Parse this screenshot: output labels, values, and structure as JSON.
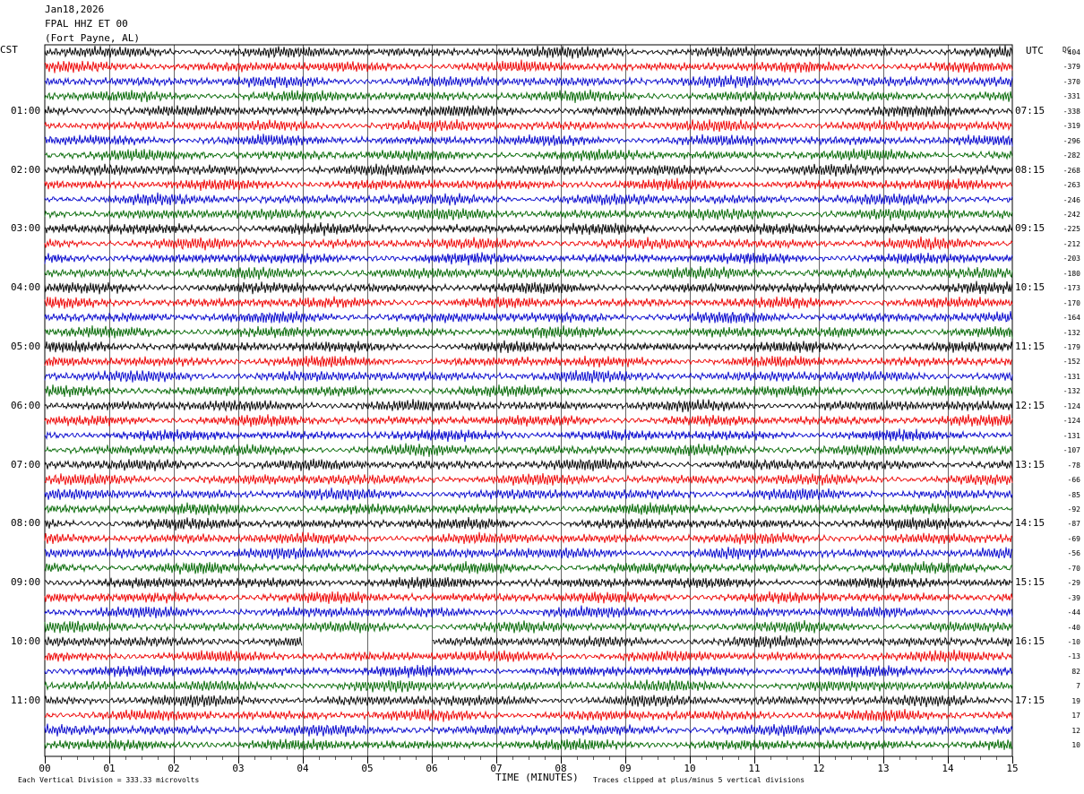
{
  "header": {
    "date": "Jan18,2026",
    "station": "FPAL HHZ ET 00",
    "location": "(Fort Payne, AL)"
  },
  "labels": {
    "left_tz": "CST",
    "right_tz": "UTC",
    "dc": "DC"
  },
  "chart_data": {
    "type": "line",
    "title": "Jan18,2026 FPAL HHZ ET 00 (Fort Payne, AL)",
    "xlabel": "TIME (MINUTES)",
    "x_ticks": [
      "00",
      "01",
      "02",
      "03",
      "04",
      "05",
      "06",
      "07",
      "08",
      "09",
      "10",
      "11",
      "12",
      "13",
      "14",
      "15"
    ],
    "xlim": [
      0,
      15
    ],
    "grid": true,
    "rows_per_hour": 4,
    "trace_colors": [
      "#000000",
      "#ee0000",
      "#0000cc",
      "#006600"
    ],
    "left_hour_labels": [
      "01:00",
      "02:00",
      "03:00",
      "04:00",
      "05:00",
      "06:00",
      "07:00",
      "08:00",
      "09:00",
      "10:00",
      "11:00"
    ],
    "right_hour_labels": [
      "07:15",
      "08:15",
      "09:15",
      "10:15",
      "11:15",
      "12:15",
      "13:15",
      "14:15",
      "15:15",
      "16:15",
      "17:15"
    ],
    "dc_offsets": [
      "-404",
      "-379",
      "-370",
      "-331",
      "-338",
      "-319",
      "-296",
      "-282",
      "-268",
      "-263",
      "-246",
      "-242",
      "-225",
      "-212",
      "-203",
      "-180",
      "-173",
      "-170",
      "-164",
      "-132",
      "-179",
      "-152",
      "-131",
      "-132",
      "-124",
      "-124",
      "-131",
      "-107",
      "-78",
      "-66",
      "-85",
      "-92",
      "-87",
      "-69",
      "-56",
      "-70",
      "-29",
      "-39",
      "-44",
      "-40",
      "-10",
      "-13",
      "82",
      "7",
      "19",
      "17",
      "12",
      "10"
    ],
    "gap": {
      "row": 40,
      "start_min": 4.0,
      "end_min": 6.0
    },
    "footnote_left": "Each Vertical Division =  333.33 microvolts",
    "footnote_right": "Traces clipped at plus/minus 5 vertical divisions"
  }
}
